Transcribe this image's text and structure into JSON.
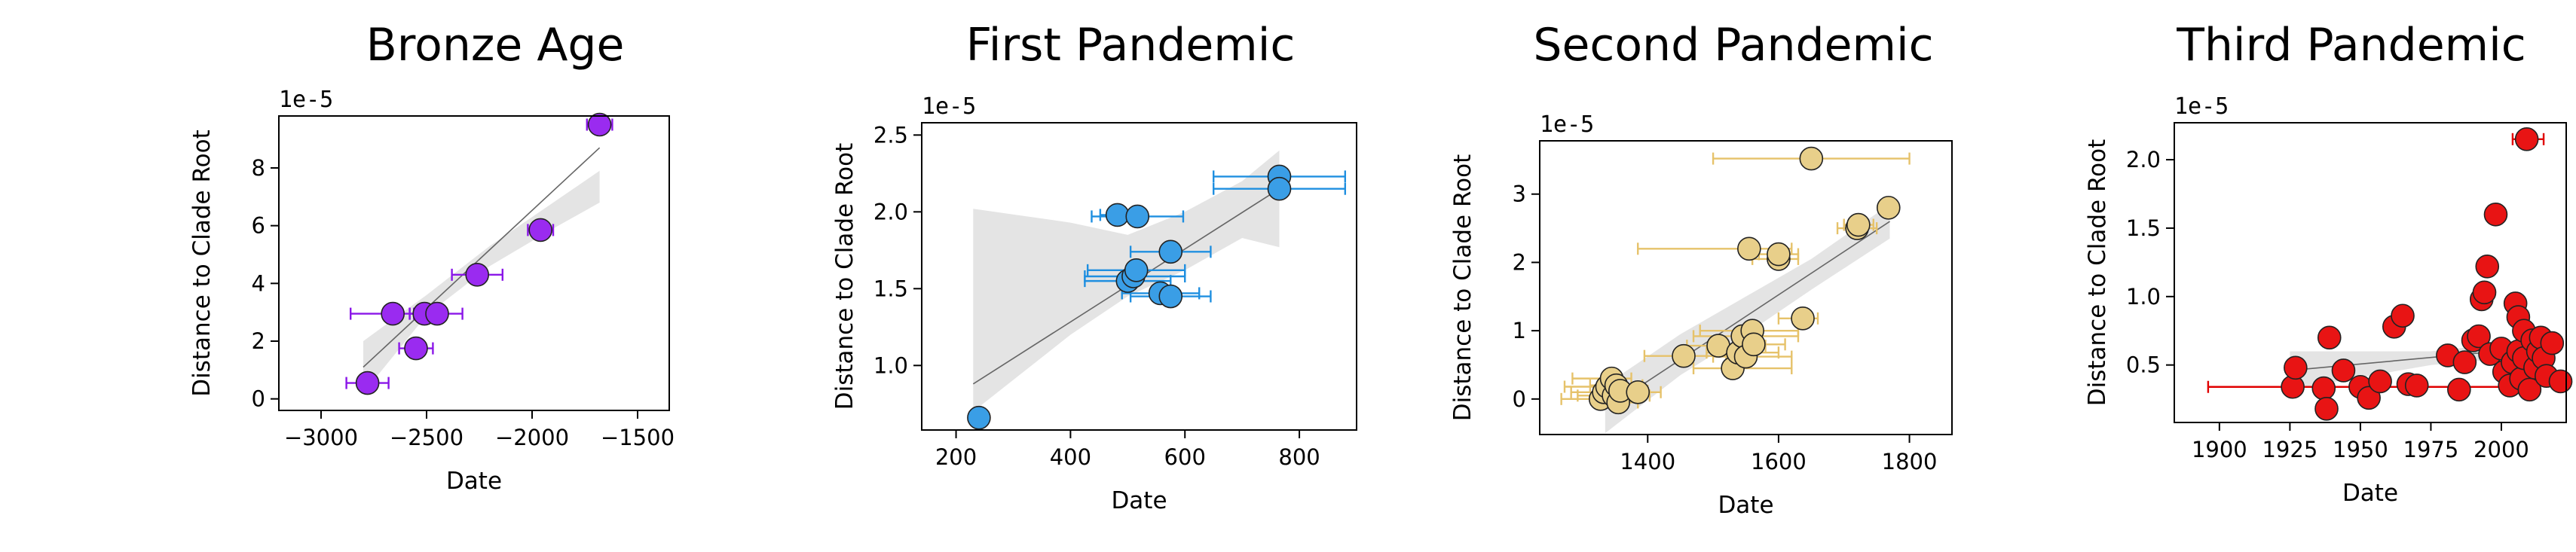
{
  "chart_data": [
    {
      "type": "scatter",
      "title": "Bronze Age",
      "xlabel": "Date",
      "ylabel": "Distance to Clade Root",
      "y_offset_label": "1e-5",
      "xlim": [
        -3200,
        -1350
      ],
      "ylim": [
        -0.4,
        9.8
      ],
      "xticks": [
        -3000,
        -2500,
        -2000,
        -1500
      ],
      "xtick_labels": [
        "−3000",
        "−2500",
        "−2000",
        "−1500"
      ],
      "yticks": [
        0,
        2,
        4,
        6,
        8
      ],
      "ytick_labels": [
        "0",
        "2",
        "4",
        "6",
        "8"
      ],
      "color": "#9a2bf0",
      "errorbar_color": "#8a16e8",
      "fit": [
        [
          -2800,
          1.1
        ],
        [
          -1680,
          8.7
        ]
      ],
      "band": [
        [
          -2800,
          2.0
        ],
        [
          -2500,
          3.6
        ],
        [
          -2200,
          5.3
        ],
        [
          -1900,
          6.8
        ],
        [
          -1680,
          7.9
        ],
        [
          -1680,
          6.8
        ],
        [
          -1900,
          5.9
        ],
        [
          -2200,
          4.6
        ],
        [
          -2500,
          2.9
        ],
        [
          -2800,
          0.2
        ]
      ],
      "points": [
        {
          "x": -2780,
          "y": 0.55,
          "xmin": -2880,
          "xmax": -2680
        },
        {
          "x": -2660,
          "y": 2.95,
          "xmin": -2860,
          "xmax": -2560
        },
        {
          "x": -2550,
          "y": 1.75,
          "xmin": -2630,
          "xmax": -2470
        },
        {
          "x": -2510,
          "y": 2.95,
          "xmin": -2580,
          "xmax": -2440
        },
        {
          "x": -2450,
          "y": 2.95,
          "xmin": -2580,
          "xmax": -2330
        },
        {
          "x": -2260,
          "y": 4.3,
          "xmin": -2380,
          "xmax": -2140
        },
        {
          "x": -1960,
          "y": 5.85,
          "xmin": -2020,
          "xmax": -1900
        },
        {
          "x": -1680,
          "y": 9.5,
          "xmin": -1740,
          "xmax": -1620
        }
      ]
    },
    {
      "type": "scatter",
      "title": "First Pandemic",
      "xlabel": "Date",
      "ylabel": "Distance to Clade Root",
      "y_offset_label": "1e-5",
      "xlim": [
        140,
        900
      ],
      "ylim": [
        0.58,
        2.58
      ],
      "xticks": [
        200,
        400,
        600,
        800
      ],
      "xtick_labels": [
        "200",
        "400",
        "600",
        "800"
      ],
      "yticks": [
        1.0,
        1.5,
        2.0,
        2.5
      ],
      "ytick_labels": [
        "1.0",
        "1.5",
        "2.0",
        "2.5"
      ],
      "color": "#3a9ee6",
      "errorbar_color": "#1f8fe0",
      "fit": [
        [
          230,
          0.88
        ],
        [
          765,
          2.15
        ]
      ],
      "band": [
        [
          230,
          2.02
        ],
        [
          400,
          1.93
        ],
        [
          500,
          1.85
        ],
        [
          600,
          2.0
        ],
        [
          700,
          2.2
        ],
        [
          765,
          2.4
        ],
        [
          765,
          1.77
        ],
        [
          700,
          1.83
        ],
        [
          600,
          1.62
        ],
        [
          500,
          1.45
        ],
        [
          400,
          1.2
        ],
        [
          230,
          0.7
        ]
      ],
      "points": [
        {
          "x": 240,
          "y": 0.66,
          "xmin": 230,
          "xmax": 250
        },
        {
          "x": 482,
          "y": 1.98,
          "xmin": 452,
          "xmax": 512
        },
        {
          "x": 517,
          "y": 1.97,
          "xmin": 437,
          "xmax": 597
        },
        {
          "x": 500,
          "y": 1.55,
          "xmin": 425,
          "xmax": 575
        },
        {
          "x": 510,
          "y": 1.58,
          "xmin": 425,
          "xmax": 600
        },
        {
          "x": 515,
          "y": 1.62,
          "xmin": 430,
          "xmax": 600
        },
        {
          "x": 557,
          "y": 1.47,
          "xmin": 490,
          "xmax": 625
        },
        {
          "x": 575,
          "y": 1.45,
          "xmin": 505,
          "xmax": 645
        },
        {
          "x": 575,
          "y": 1.74,
          "xmin": 505,
          "xmax": 645
        },
        {
          "x": 765,
          "y": 2.23,
          "xmin": 650,
          "xmax": 880
        },
        {
          "x": 765,
          "y": 2.15,
          "xmin": 650,
          "xmax": 880
        }
      ]
    },
    {
      "type": "scatter",
      "title": "Second Pandemic",
      "xlabel": "Date",
      "ylabel": "Distance to Clade Root",
      "y_offset_label": "1e-5",
      "xlim": [
        1235,
        1865
      ],
      "ylim": [
        -0.52,
        3.78
      ],
      "xticks": [
        1400,
        1600,
        1800
      ],
      "xtick_labels": [
        "1400",
        "1600",
        "1800"
      ],
      "yticks": [
        0,
        1,
        2,
        3
      ],
      "ytick_labels": [
        "0",
        "1",
        "2",
        "3"
      ],
      "color": "#e8cf8a",
      "errorbar_color": "#e6c26a",
      "fit": [
        [
          1335,
          -0.15
        ],
        [
          1770,
          2.6
        ]
      ],
      "band": [
        [
          1335,
          0.2
        ],
        [
          1450,
          0.95
        ],
        [
          1550,
          1.5
        ],
        [
          1650,
          2.05
        ],
        [
          1770,
          2.85
        ],
        [
          1770,
          2.35
        ],
        [
          1650,
          1.6
        ],
        [
          1550,
          0.95
        ],
        [
          1450,
          0.35
        ],
        [
          1335,
          -0.5
        ]
      ],
      "points": [
        {
          "x": 1328,
          "y": 0.0,
          "xmin": 1268,
          "xmax": 1358
        },
        {
          "x": 1333,
          "y": 0.1,
          "xmin": 1283,
          "xmax": 1383
        },
        {
          "x": 1338,
          "y": 0.18,
          "xmin": 1273,
          "xmax": 1363
        },
        {
          "x": 1345,
          "y": 0.3,
          "xmin": 1285,
          "xmax": 1375
        },
        {
          "x": 1348,
          "y": 0.05,
          "xmin": 1293,
          "xmax": 1403
        },
        {
          "x": 1352,
          "y": 0.2,
          "xmin": 1312,
          "xmax": 1392
        },
        {
          "x": 1355,
          "y": -0.05,
          "xmin": 1325,
          "xmax": 1385
        },
        {
          "x": 1358,
          "y": 0.12,
          "xmin": 1330,
          "xmax": 1400
        },
        {
          "x": 1385,
          "y": 0.1,
          "xmin": 1370,
          "xmax": 1420
        },
        {
          "x": 1455,
          "y": 0.63,
          "xmin": 1395,
          "xmax": 1520
        },
        {
          "x": 1508,
          "y": 0.78,
          "xmin": 1460,
          "xmax": 1580
        },
        {
          "x": 1530,
          "y": 0.45,
          "xmin": 1470,
          "xmax": 1620
        },
        {
          "x": 1538,
          "y": 0.68,
          "xmin": 1490,
          "xmax": 1600
        },
        {
          "x": 1545,
          "y": 0.92,
          "xmin": 1470,
          "xmax": 1630
        },
        {
          "x": 1550,
          "y": 0.62,
          "xmin": 1500,
          "xmax": 1620
        },
        {
          "x": 1555,
          "y": 2.2,
          "xmin": 1385,
          "xmax": 1620
        },
        {
          "x": 1560,
          "y": 1.0,
          "xmin": 1480,
          "xmax": 1630
        },
        {
          "x": 1562,
          "y": 0.8,
          "xmin": 1520,
          "xmax": 1610
        },
        {
          "x": 1600,
          "y": 2.05,
          "xmin": 1560,
          "xmax": 1630
        },
        {
          "x": 1600,
          "y": 2.12,
          "xmin": 1570,
          "xmax": 1630
        },
        {
          "x": 1637,
          "y": 1.18,
          "xmin": 1600,
          "xmax": 1660
        },
        {
          "x": 1650,
          "y": 3.52,
          "xmin": 1500,
          "xmax": 1800
        },
        {
          "x": 1720,
          "y": 2.5,
          "xmin": 1690,
          "xmax": 1750
        },
        {
          "x": 1722,
          "y": 2.55,
          "xmin": 1700,
          "xmax": 1745
        },
        {
          "x": 1768,
          "y": 2.8,
          "xmin": 1755,
          "xmax": 1780
        }
      ]
    },
    {
      "type": "scatter",
      "title": "Third Pandemic",
      "xlabel": "Date",
      "ylabel": "Distance to Clade Root",
      "y_offset_label": "1e-5",
      "xlim": [
        1884,
        2023
      ],
      "ylim": [
        0.08,
        2.27
      ],
      "xticks": [
        1900,
        1925,
        1950,
        1975,
        2000
      ],
      "xtick_labels": [
        "1900",
        "1925",
        "1950",
        "1975",
        "2000"
      ],
      "yticks": [
        0.5,
        1.0,
        1.5,
        2.0
      ],
      "ytick_labels": [
        "0.5",
        "1.0",
        "1.5",
        "2.0"
      ],
      "color": "#e81414",
      "errorbar_color": "#e00000",
      "fit": [
        [
          1925,
          0.46
        ],
        [
          2020,
          0.64
        ]
      ],
      "band": [
        [
          1925,
          0.6
        ],
        [
          1975,
          0.6
        ],
        [
          2020,
          0.7
        ],
        [
          2020,
          0.58
        ],
        [
          1975,
          0.5
        ],
        [
          1925,
          0.32
        ]
      ],
      "points": [
        {
          "x": 1926,
          "y": 0.34,
          "xmin": 1896,
          "xmax": 2012
        },
        {
          "x": 1927,
          "y": 0.48
        },
        {
          "x": 1937,
          "y": 0.33
        },
        {
          "x": 1938,
          "y": 0.18
        },
        {
          "x": 1939,
          "y": 0.7
        },
        {
          "x": 1944,
          "y": 0.46
        },
        {
          "x": 1950,
          "y": 0.34
        },
        {
          "x": 1953,
          "y": 0.26
        },
        {
          "x": 1957,
          "y": 0.38
        },
        {
          "x": 1962,
          "y": 0.78
        },
        {
          "x": 1965,
          "y": 0.86
        },
        {
          "x": 1967,
          "y": 0.36
        },
        {
          "x": 1970,
          "y": 0.35
        },
        {
          "x": 1981,
          "y": 0.57
        },
        {
          "x": 1985,
          "y": 0.32
        },
        {
          "x": 1987,
          "y": 0.52
        },
        {
          "x": 1990,
          "y": 0.68
        },
        {
          "x": 1992,
          "y": 0.71
        },
        {
          "x": 1993,
          "y": 0.98
        },
        {
          "x": 1994,
          "y": 1.03
        },
        {
          "x": 1995,
          "y": 1.22
        },
        {
          "x": 1996,
          "y": 0.58
        },
        {
          "x": 1998,
          "y": 1.6
        },
        {
          "x": 2000,
          "y": 0.62
        },
        {
          "x": 2001,
          "y": 0.45
        },
        {
          "x": 2003,
          "y": 0.35
        },
        {
          "x": 2004,
          "y": 0.52
        },
        {
          "x": 2005,
          "y": 0.95
        },
        {
          "x": 2006,
          "y": 0.85
        },
        {
          "x": 2006,
          "y": 0.6
        },
        {
          "x": 2007,
          "y": 0.4
        },
        {
          "x": 2008,
          "y": 0.75
        },
        {
          "x": 2008,
          "y": 0.55
        },
        {
          "x": 2009,
          "y": 2.15,
          "xmin": 2004,
          "xmax": 2015
        },
        {
          "x": 2010,
          "y": 0.32
        },
        {
          "x": 2011,
          "y": 0.68
        },
        {
          "x": 2012,
          "y": 0.48
        },
        {
          "x": 2013,
          "y": 0.6
        },
        {
          "x": 2014,
          "y": 0.7
        },
        {
          "x": 2015,
          "y": 0.55
        },
        {
          "x": 2016,
          "y": 0.42
        },
        {
          "x": 2018,
          "y": 0.66
        },
        {
          "x": 2021,
          "y": 0.38
        }
      ]
    }
  ]
}
